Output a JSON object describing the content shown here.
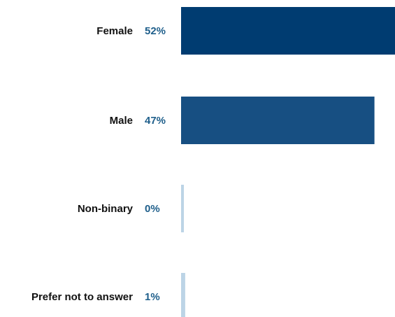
{
  "chart_data": {
    "type": "bar",
    "orientation": "horizontal",
    "categories": [
      "Female",
      "Male",
      "Non-binary",
      "Prefer not to answer"
    ],
    "values": [
      52,
      47,
      0,
      1
    ],
    "value_labels": [
      "52%",
      "47%",
      "0%",
      "1%"
    ],
    "unit": "%",
    "bar_colors": [
      "#003c71",
      "#174f82",
      "#bcd4e6",
      "#bcd4e6"
    ],
    "label_color": "#111111",
    "value_label_color": "#1f5f8b",
    "grid": false,
    "legend": "none"
  }
}
